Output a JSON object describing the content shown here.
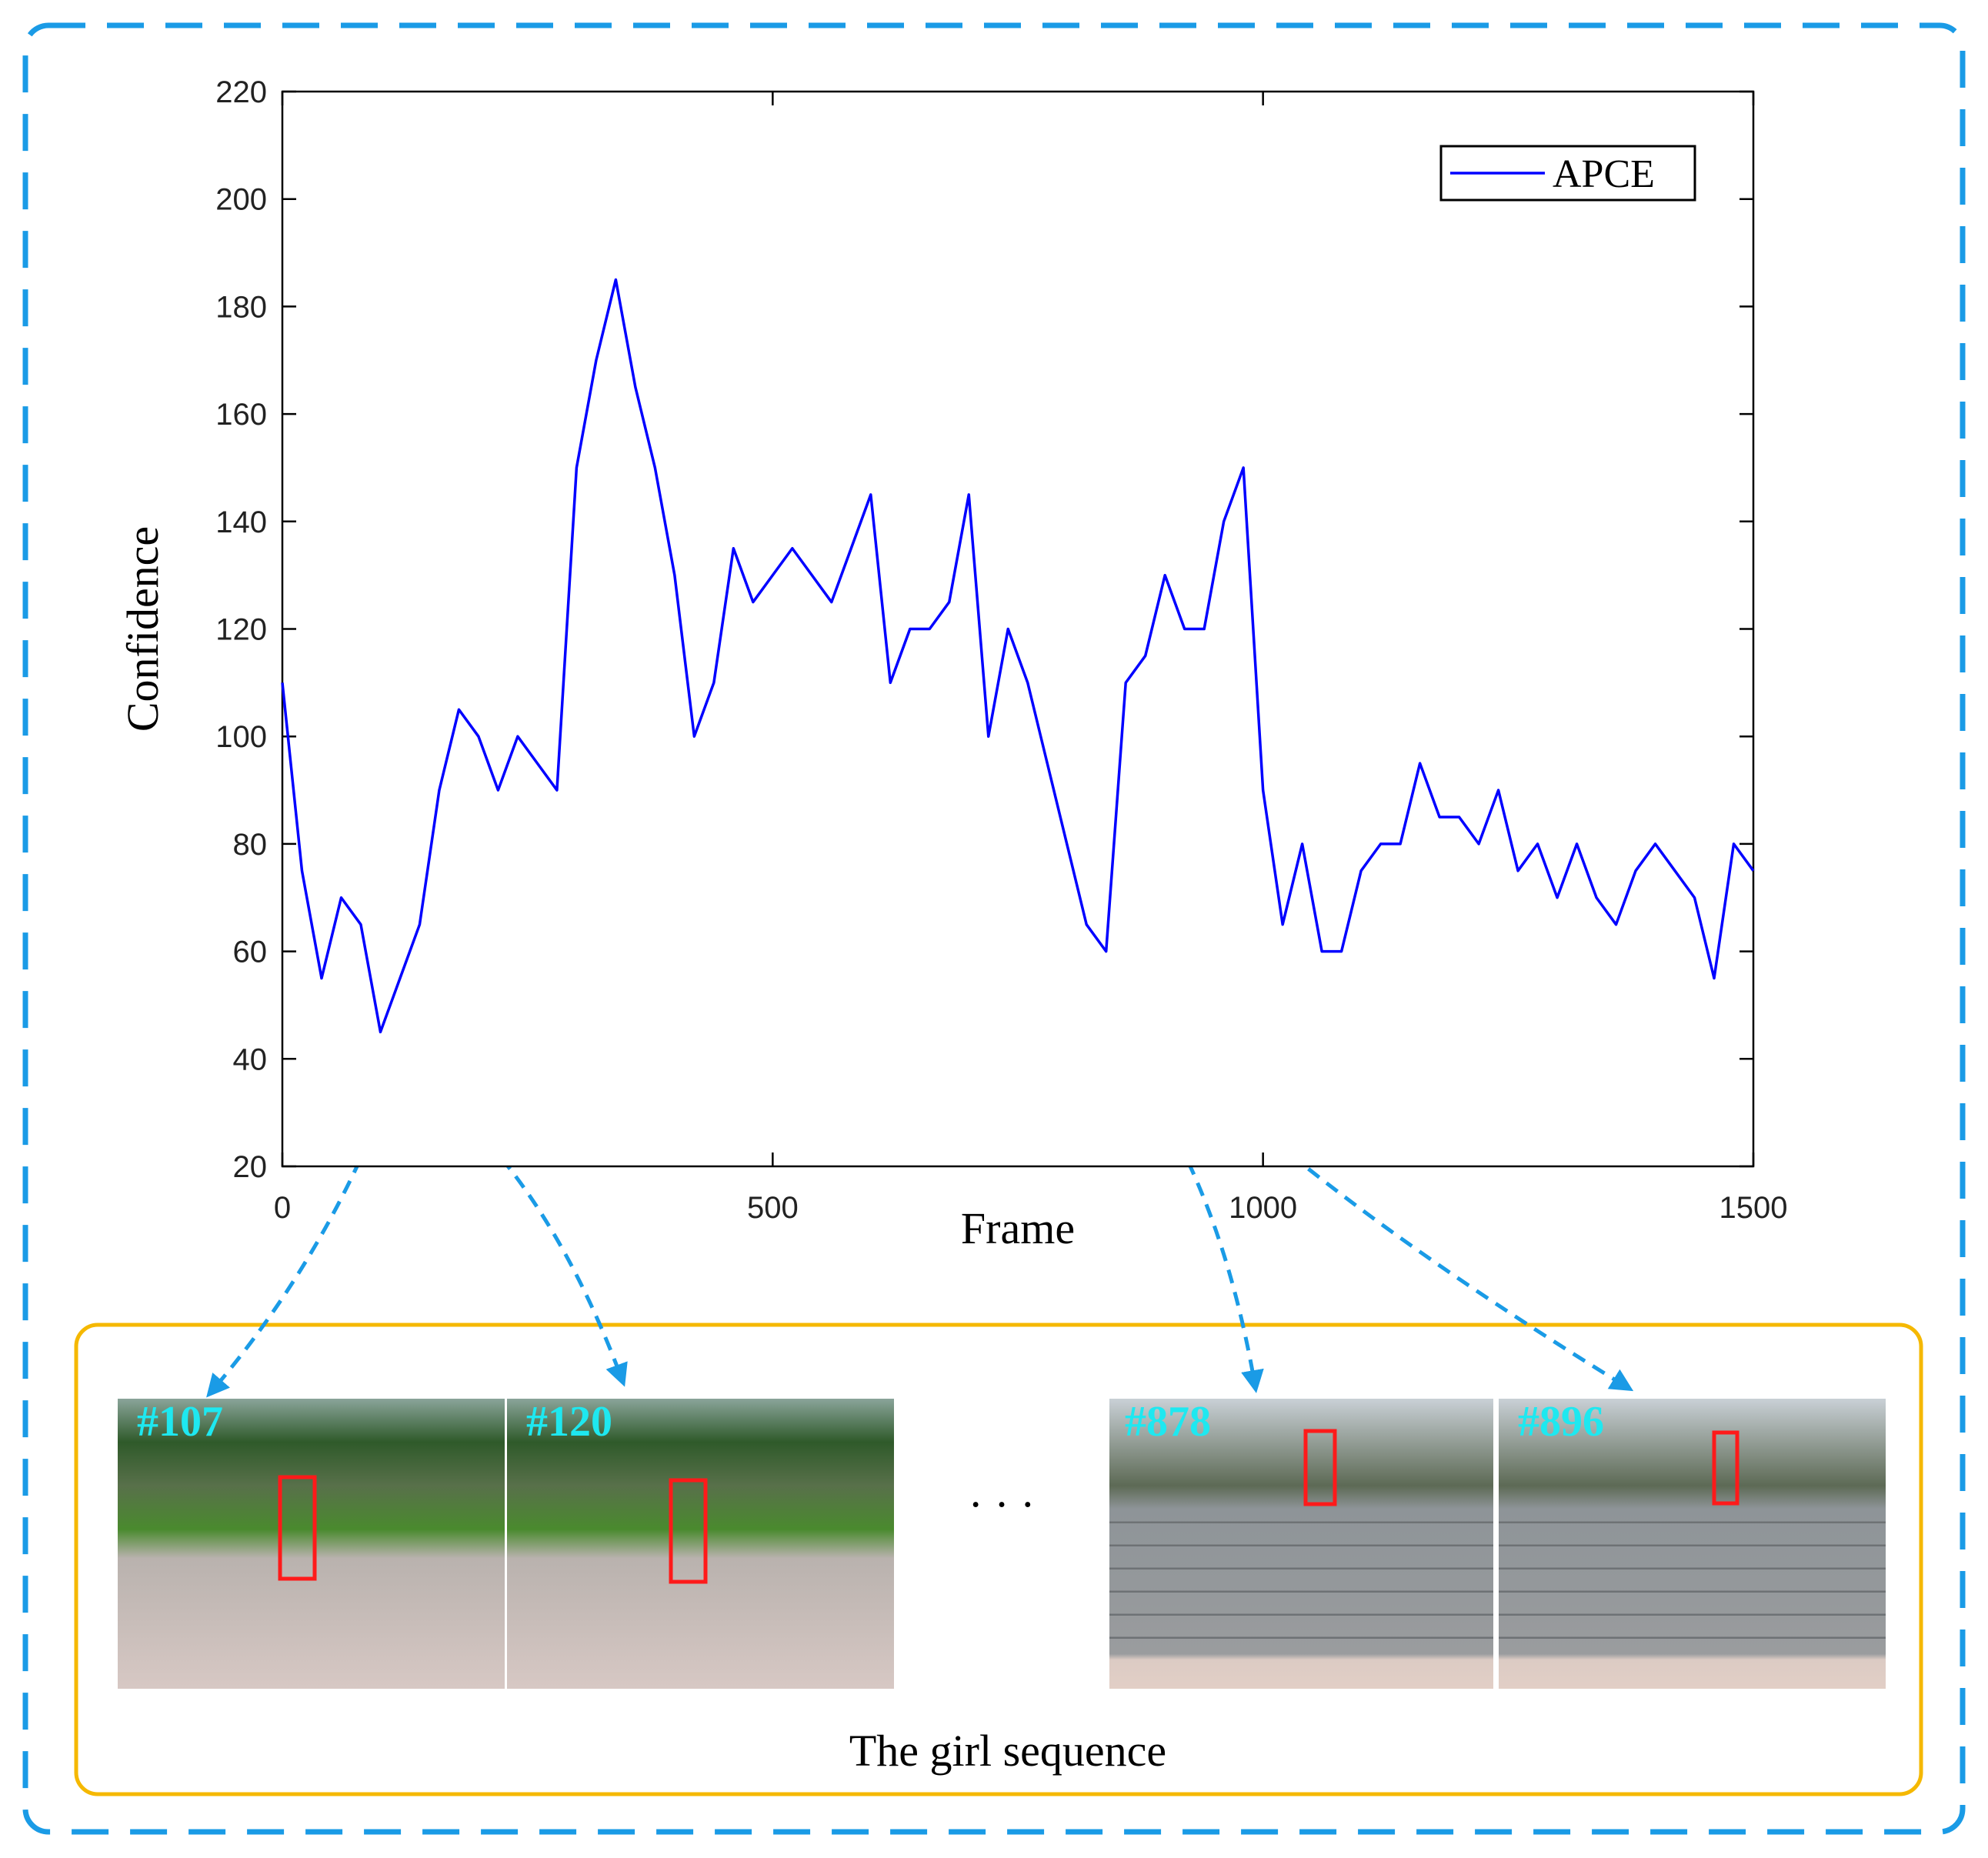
{
  "chart_data": {
    "type": "line",
    "xlabel": "Frame",
    "ylabel": "Confidence",
    "x": [
      0,
      20,
      40,
      60,
      80,
      100,
      120,
      140,
      160,
      180,
      200,
      220,
      240,
      260,
      280,
      300,
      320,
      340,
      360,
      380,
      400,
      420,
      440,
      460,
      480,
      500,
      520,
      540,
      560,
      580,
      600,
      620,
      640,
      660,
      680,
      700,
      720,
      740,
      760,
      780,
      800,
      820,
      840,
      860,
      880,
      900,
      920,
      940,
      960,
      980,
      1000,
      1020,
      1040,
      1060,
      1080,
      1100,
      1120,
      1140,
      1160,
      1180,
      1200,
      1220,
      1240,
      1260,
      1280,
      1300,
      1320,
      1340,
      1360,
      1380,
      1400,
      1420,
      1440,
      1460,
      1480,
      1500
    ],
    "series": [
      {
        "name": "APCE",
        "color": "#0000ff",
        "values": [
          110,
          75,
          55,
          70,
          65,
          45,
          55,
          65,
          90,
          105,
          100,
          90,
          100,
          95,
          90,
          150,
          170,
          185,
          165,
          150,
          130,
          100,
          110,
          135,
          125,
          130,
          135,
          130,
          125,
          135,
          145,
          110,
          120,
          120,
          125,
          145,
          100,
          120,
          110,
          95,
          80,
          65,
          60,
          110,
          115,
          130,
          120,
          120,
          140,
          150,
          90,
          65,
          80,
          60,
          60,
          75,
          80,
          80,
          95,
          85,
          85,
          80,
          90,
          75,
          80,
          70,
          80,
          70,
          65,
          75,
          80,
          75,
          70,
          55,
          80,
          75
        ]
      }
    ],
    "xlim": [
      0,
      1500
    ],
    "ylim": [
      20,
      220
    ],
    "xticks": [
      0,
      500,
      1000,
      1500
    ],
    "yticks": [
      20,
      40,
      60,
      80,
      100,
      120,
      140,
      160,
      180,
      200,
      220
    ],
    "legend": "upper right"
  },
  "sequence": {
    "caption": "The girl sequence",
    "frames": [
      "#107",
      "#120",
      "#878",
      "#896"
    ],
    "ellipsis": "· · ·"
  }
}
